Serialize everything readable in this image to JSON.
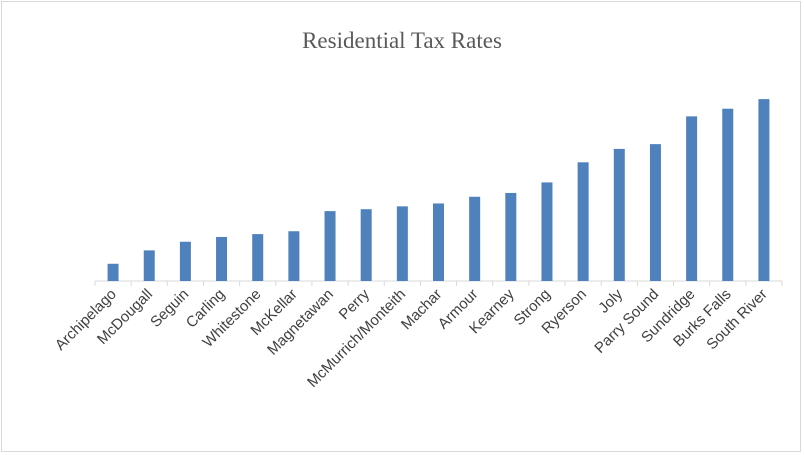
{
  "chart_data": {
    "type": "bar",
    "title": "Residential Tax Rates",
    "xlabel": "",
    "ylabel": "",
    "categories": [
      "Archipelago",
      "McDougall",
      "Seguin",
      "Carling",
      "Whitestone",
      "McKellar",
      "Magnetawan",
      "Perry",
      "McMurrich/Monteith",
      "Machar",
      "Armour",
      "Kearney",
      "Strong",
      "Ryerson",
      "Joly",
      "Parry Sound",
      "Sundridge",
      "Burks Falls",
      "South River"
    ],
    "values": [
      18,
      32,
      41,
      46,
      49,
      52,
      73,
      75,
      78,
      81,
      88,
      92,
      103,
      124,
      138,
      143,
      172,
      180,
      190
    ],
    "ylim": [
      0,
      210
    ],
    "grid": false,
    "legend": "none",
    "bar_color": "#4f81bd",
    "axis_color": "#d9d9d9"
  }
}
